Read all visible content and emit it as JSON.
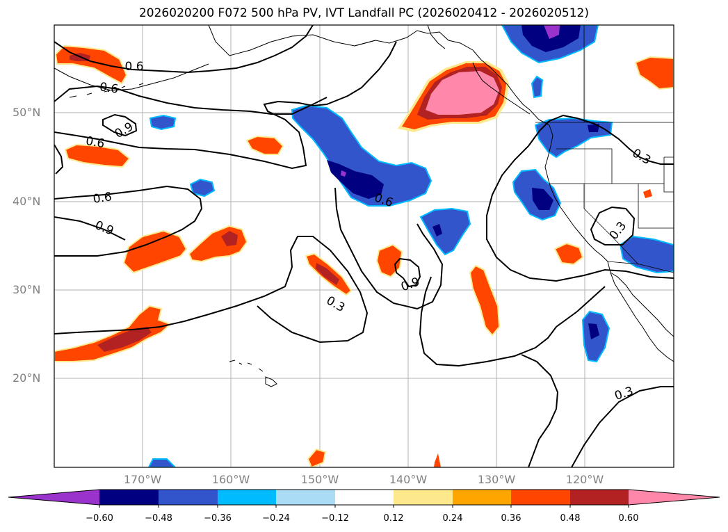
{
  "title": "2026020200 F072 500 hPa PV, IVT Landfall PC (2026020412 - 2026020512)",
  "lat_labels": [
    "50°N",
    "40°N",
    "30°N",
    "20°N"
  ],
  "lon_labels": [
    "170°W",
    "160°W",
    "150°W",
    "140°W",
    "130°W",
    "120°W"
  ],
  "contour_labels": [
    "0.6",
    "0.6",
    "0.9",
    "0.6",
    "0.6",
    "0.9",
    "0.6",
    "0.3",
    "0.9",
    "0.3",
    "0.3",
    "0.3"
  ],
  "colorbar": {
    "ticks": [
      "−0.60",
      "−0.48",
      "−0.36",
      "−0.24",
      "−0.12",
      "0.12",
      "0.24",
      "0.36",
      "0.48",
      "0.60"
    ],
    "colors": [
      "#9933cc",
      "#000080",
      "#3355cc",
      "#00bbff",
      "#aaddf5",
      "#ffffff",
      "#fde98c",
      "#ffa500",
      "#ff4500",
      "#b22222",
      "#ff88aa"
    ]
  },
  "palette": {
    "neg_strong": "#000080",
    "neg_mid": "#3355cc",
    "neg_weak": "#00bbff",
    "neg_extreme": "#9933cc",
    "pos_weak": "#fde98c",
    "pos_mid": "#ff4500",
    "pos_strong": "#b22222",
    "pos_extreme": "#ff88aa"
  }
}
